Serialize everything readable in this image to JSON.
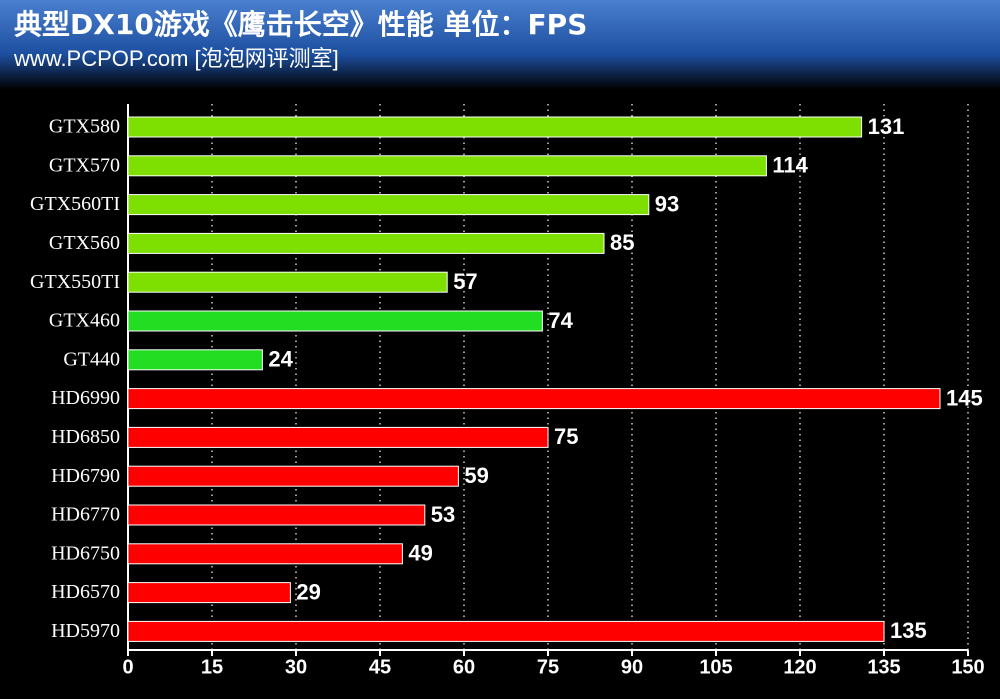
{
  "chart_data": {
    "type": "hbar",
    "title": "典型DX10游戏《鹰击长空》性能  单位：FPS",
    "subtitle": "www.PCPOP.com [泡泡网评测室]",
    "categories": [
      "GTX580",
      "GTX570",
      "GTX560TI",
      "GTX560",
      "GTX550TI",
      "GTX460",
      "GT440",
      "HD6990",
      "HD6850",
      "HD6790",
      "HD6770",
      "HD6750",
      "HD6570",
      "HD5970"
    ],
    "values": [
      131,
      114,
      93,
      85,
      57,
      74,
      24,
      145,
      75,
      59,
      53,
      49,
      29,
      135
    ],
    "colors": [
      "#7ee000",
      "#7ee000",
      "#7ee000",
      "#7ee000",
      "#7ee000",
      "#22dd22",
      "#22dd22",
      "#ff0000",
      "#ff0000",
      "#ff0000",
      "#ff0000",
      "#ff0000",
      "#ff0000",
      "#ff0000"
    ],
    "xlim": [
      0,
      150
    ],
    "xticks": [
      0,
      15,
      30,
      45,
      60,
      75,
      90,
      105,
      120,
      135,
      150
    ],
    "grid": true
  }
}
